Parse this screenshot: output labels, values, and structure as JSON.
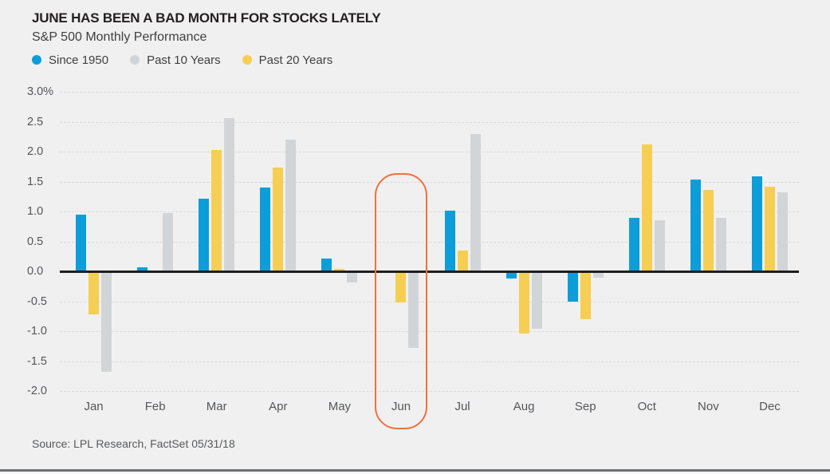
{
  "header": {
    "title": "JUNE HAS BEEN A BAD MONTH FOR STOCKS LATELY",
    "subtitle": "S&P 500 Monthly Performance"
  },
  "colors": {
    "since_1950": "#0d9dd9",
    "past_10_years": "#d2d5d7",
    "past_20_years": "#f6ce54",
    "highlight": "#f3703a",
    "background": "#f0f0f0",
    "axis_line": "#1e1e1e"
  },
  "chart_data": {
    "type": "bar",
    "title": "JUNE HAS BEEN A BAD MONTH FOR STOCKS LATELY",
    "subtitle": "S&P 500 Monthly Performance",
    "categories": [
      "Jan",
      "Feb",
      "Mar",
      "Apr",
      "May",
      "Jun",
      "Jul",
      "Aug",
      "Sep",
      "Oct",
      "Nov",
      "Dec"
    ],
    "series": [
      {
        "name": "Since 1950",
        "color": "#0d9dd9",
        "values": [
          0.95,
          0.07,
          1.22,
          1.4,
          0.22,
          0.0,
          1.01,
          -0.12,
          -0.5,
          0.9,
          1.53,
          1.59
        ]
      },
      {
        "name": "Past 10 Years",
        "color": "#d2d5d7",
        "values": [
          -1.68,
          0.97,
          2.56,
          2.2,
          -0.18,
          -1.28,
          2.3,
          -0.96,
          -0.1,
          0.86,
          0.9,
          1.32
        ]
      },
      {
        "name": "Past 20 Years",
        "color": "#f6ce54",
        "values": [
          -0.72,
          0.0,
          2.03,
          1.73,
          0.04,
          -0.52,
          0.35,
          -1.04,
          -0.8,
          2.12,
          1.36,
          1.42
        ]
      }
    ],
    "display_order": [
      "Since 1950",
      "Past 20 Years",
      "Past 10 Years"
    ],
    "legend_position": "top-left",
    "legend_order": [
      "Since 1950",
      "Past 10 Years",
      "Past 20 Years"
    ],
    "ylim": [
      -2.0,
      3.0
    ],
    "ytick_step": 0.5,
    "ytick_labels": [
      "3.0%",
      "2.5",
      "2.0",
      "1.5",
      "1.0",
      "0.5",
      "0.0",
      "-0.5",
      "-1.0",
      "-1.5",
      "-2.0"
    ],
    "xlabel": "",
    "ylabel": "",
    "grid": "dashed horizontal",
    "highlight": {
      "category": "Jun",
      "color": "#f3703a",
      "shape": "rounded-rectangle-ring"
    }
  },
  "source": {
    "text": "Source: LPL Research, FactSet  05/31/18"
  }
}
